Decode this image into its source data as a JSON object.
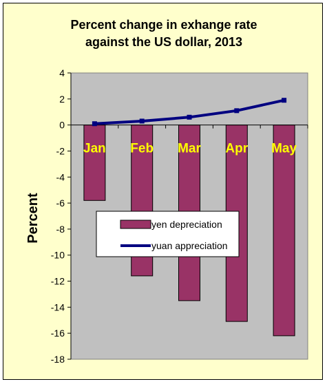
{
  "chart_data": {
    "type": "bar",
    "title_lines": [
      "Percent change in exhange rate",
      "against the US dollar, 2013"
    ],
    "xlabel": "",
    "ylabel": "Percent",
    "categories": [
      "Jan",
      "Feb",
      "Mar",
      "Apr",
      "May"
    ],
    "ylim": [
      -18,
      4
    ],
    "yticks": [
      4,
      2,
      0,
      -2,
      -4,
      -6,
      -8,
      -10,
      -12,
      -14,
      -16,
      -18
    ],
    "grid": false,
    "legend_position": "center",
    "series": [
      {
        "name": "yen depreciation",
        "kind": "bar",
        "values": [
          -5.8,
          -11.6,
          -13.5,
          -15.1,
          -16.2
        ]
      },
      {
        "name": "yuan appreciation",
        "kind": "line",
        "values": [
          0.1,
          0.3,
          0.6,
          1.1,
          1.9
        ]
      }
    ],
    "colors": {
      "background": "#FFFFCC",
      "plot_area": "#C0C0C0",
      "bar": "#993366",
      "line": "#000080",
      "category_label": "#FFFF00"
    }
  }
}
